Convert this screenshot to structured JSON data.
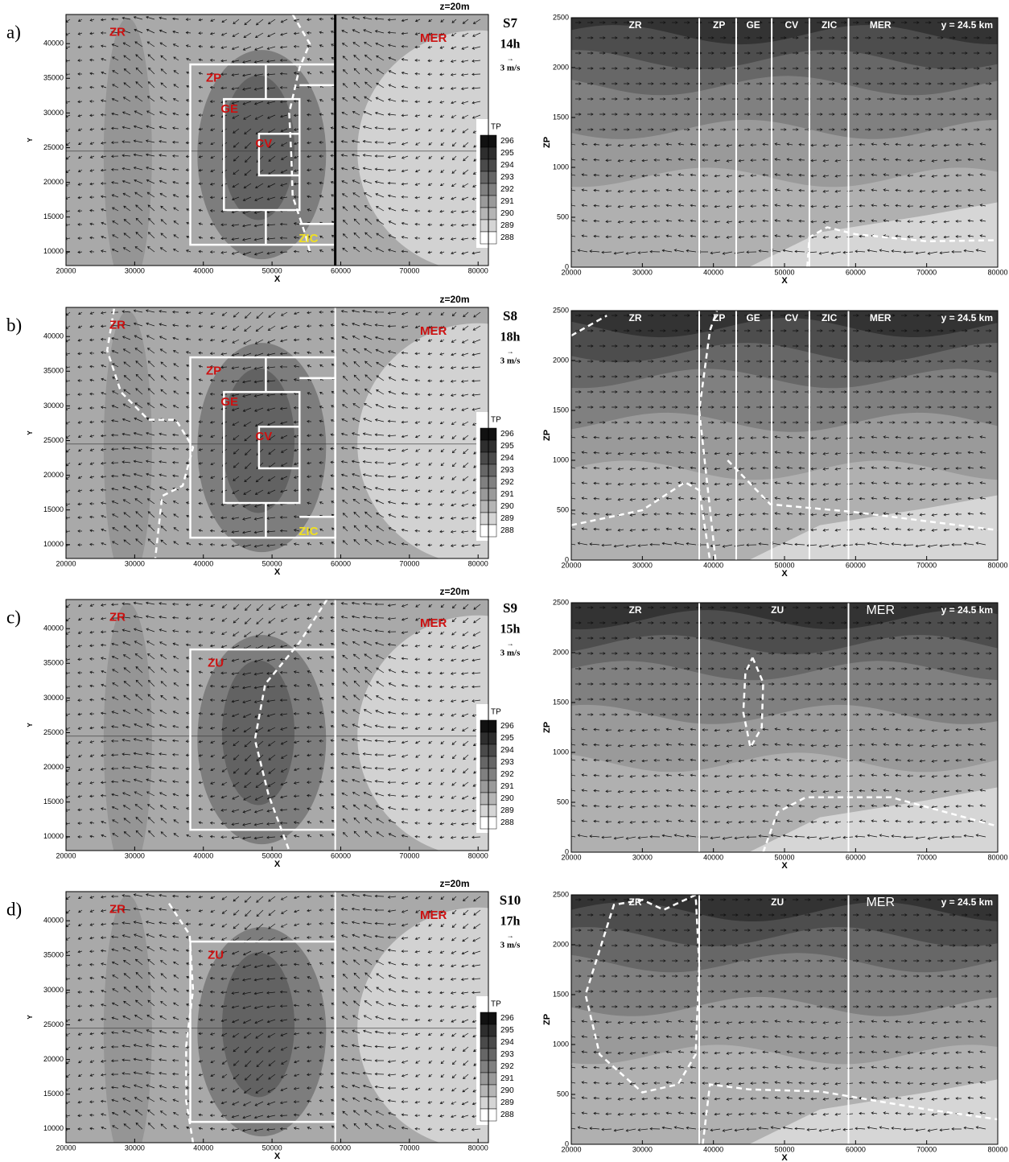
{
  "chart_data": [
    {
      "type": "map",
      "panel_label": "a)",
      "level_label": "z=20m",
      "scenario": "S7",
      "time": "14h",
      "vector_arrow": "→",
      "vector_scale": "3 m/s",
      "xlabel": "X",
      "ylabel": "Y",
      "xlim": [
        20000,
        81500
      ],
      "xticks": [
        20000,
        30000,
        40000,
        50000,
        60000,
        70000,
        80000
      ],
      "ylim": [
        8000,
        44200
      ],
      "yticks": [
        10000,
        15000,
        20000,
        25000,
        30000,
        35000,
        40000
      ],
      "colorbar": {
        "title": "TP",
        "levels": [
          296,
          295,
          294,
          293,
          292,
          291,
          290,
          289,
          288
        ],
        "colors": [
          "#111111",
          "#2e2e2e",
          "#4a4a4a",
          "#666666",
          "#808080",
          "#9a9a9a",
          "#b5b5b5",
          "#d5d5d5",
          "#ffffff"
        ]
      },
      "zones": [
        "ZR",
        "MER",
        "ZP",
        "GE",
        "CV",
        "ZIC"
      ]
    },
    {
      "type": "section",
      "xlabel": "X",
      "ylabel": "ZP",
      "section_label": "y = 24.5 km",
      "xlim": [
        20000,
        80000
      ],
      "xticks": [
        20000,
        30000,
        40000,
        50000,
        60000,
        70000,
        80000
      ],
      "ylim": [
        0,
        2500
      ],
      "yticks": [
        0,
        500,
        1000,
        1500,
        2000,
        2500
      ],
      "zones": [
        "ZR",
        "ZP",
        "GE",
        "CV",
        "ZIC",
        "MER"
      ]
    },
    {
      "type": "map",
      "panel_label": "b)",
      "level_label": "z=20m",
      "scenario": "S8",
      "time": "18h",
      "vector_arrow": "→",
      "vector_scale": "3 m/s",
      "xlabel": "X",
      "ylabel": "Y",
      "xlim": [
        20000,
        81500
      ],
      "xticks": [
        20000,
        30000,
        40000,
        50000,
        60000,
        70000,
        80000
      ],
      "ylim": [
        8000,
        44200
      ],
      "yticks": [
        10000,
        15000,
        20000,
        25000,
        30000,
        35000,
        40000
      ],
      "colorbar": {
        "title": "TP",
        "levels": [
          296,
          295,
          294,
          293,
          292,
          291,
          290,
          289,
          288
        ],
        "colors": [
          "#111111",
          "#2e2e2e",
          "#4a4a4a",
          "#666666",
          "#808080",
          "#9a9a9a",
          "#b5b5b5",
          "#d5d5d5",
          "#ffffff"
        ]
      },
      "zones": [
        "ZR",
        "MER",
        "ZP",
        "GE",
        "CV",
        "ZIC"
      ]
    },
    {
      "type": "section",
      "xlabel": "X",
      "ylabel": "ZP",
      "section_label": "y = 24.5 km",
      "xlim": [
        20000,
        80000
      ],
      "xticks": [
        20000,
        30000,
        40000,
        50000,
        60000,
        70000,
        80000
      ],
      "ylim": [
        0,
        2500
      ],
      "yticks": [
        0,
        500,
        1000,
        1500,
        2000,
        2500
      ],
      "zones": [
        "ZR",
        "ZP",
        "GE",
        "CV",
        "ZIC",
        "MER"
      ]
    },
    {
      "type": "map",
      "panel_label": "c)",
      "level_label": "z=20m",
      "scenario": "S9",
      "time": "15h",
      "vector_arrow": "→",
      "vector_scale": "3 m/s",
      "xlabel": "X",
      "ylabel": "Y",
      "xlim": [
        20000,
        81500
      ],
      "xticks": [
        20000,
        30000,
        40000,
        50000,
        60000,
        70000,
        80000
      ],
      "ylim": [
        8000,
        44200
      ],
      "yticks": [
        10000,
        15000,
        20000,
        25000,
        30000,
        35000,
        40000
      ],
      "colorbar": {
        "title": "TP",
        "levels": [
          296,
          295,
          294,
          293,
          292,
          291,
          290,
          289,
          288
        ],
        "colors": [
          "#111111",
          "#2e2e2e",
          "#4a4a4a",
          "#666666",
          "#808080",
          "#9a9a9a",
          "#b5b5b5",
          "#d5d5d5",
          "#ffffff"
        ]
      },
      "zones": [
        "ZR",
        "MER",
        "ZU"
      ]
    },
    {
      "type": "section",
      "xlabel": "X",
      "ylabel": "ZP",
      "section_label": "y = 24.5 km",
      "xlim": [
        20000,
        80000
      ],
      "xticks": [
        20000,
        30000,
        40000,
        50000,
        60000,
        70000,
        80000
      ],
      "ylim": [
        0,
        2500
      ],
      "yticks": [
        0,
        500,
        1000,
        1500,
        2000,
        2500
      ],
      "zones": [
        "ZR",
        "ZU",
        "MER"
      ]
    },
    {
      "type": "map",
      "panel_label": "d)",
      "level_label": "z=20m",
      "scenario": "S10",
      "time": "17h",
      "vector_arrow": "→",
      "vector_scale": "3 m/s",
      "xlabel": "X",
      "ylabel": "Y",
      "xlim": [
        20000,
        81500
      ],
      "xticks": [
        20000,
        30000,
        40000,
        50000,
        60000,
        70000,
        80000
      ],
      "ylim": [
        8000,
        44200
      ],
      "yticks": [
        10000,
        15000,
        20000,
        25000,
        30000,
        35000,
        40000
      ],
      "colorbar": {
        "title": "TP",
        "levels": [
          296,
          295,
          294,
          293,
          292,
          291,
          290,
          289,
          288
        ],
        "colors": [
          "#111111",
          "#2e2e2e",
          "#4a4a4a",
          "#666666",
          "#808080",
          "#9a9a9a",
          "#b5b5b5",
          "#d5d5d5",
          "#ffffff"
        ]
      },
      "zones": [
        "ZR",
        "MER",
        "ZU"
      ]
    },
    {
      "type": "section",
      "xlabel": "X",
      "ylabel": "ZP",
      "section_label": "y = 24.5 km",
      "xlim": [
        20000,
        80000
      ],
      "xticks": [
        20000,
        30000,
        40000,
        50000,
        60000,
        70000,
        80000
      ],
      "ylim": [
        0,
        2500
      ],
      "yticks": [
        0,
        500,
        1000,
        1500,
        2000,
        2500
      ],
      "zones": [
        "ZR",
        "ZU",
        "MER"
      ]
    }
  ]
}
